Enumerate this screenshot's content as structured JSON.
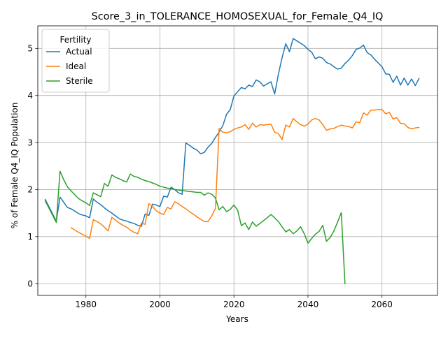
{
  "chart_data": {
    "type": "line",
    "title": "Score_3_in_TOLERANCE_HOMOSEXUAL_for_Female_Q4_IQ",
    "xlabel": "Years",
    "ylabel": "% of Female Q4_IQ Population",
    "xlim": [
      1967,
      2075
    ],
    "ylim": [
      -0.25,
      5.48
    ],
    "xticks": [
      1980,
      2000,
      2020,
      2040,
      2060
    ],
    "yticks": [
      0,
      1,
      2,
      3,
      4,
      5
    ],
    "grid": true,
    "legend": {
      "title": "Fertility",
      "position": "top-left"
    },
    "series": [
      {
        "name": "Actual",
        "color": "#1f77b4",
        "x": [
          1969,
          1972,
          1973,
          1974,
          1975,
          1976,
          1977,
          1978,
          1979,
          1980,
          1981,
          1982,
          1983,
          1984,
          1985,
          1986,
          1987,
          1988,
          1989,
          1990,
          1991,
          1992,
          1993,
          1994,
          1995,
          1996,
          1997,
          1998,
          1999,
          2000,
          2001,
          2002,
          2003,
          2004,
          2005,
          2006,
          2007,
          2008,
          2009,
          2010,
          2011,
          2012,
          2013,
          2014,
          2015,
          2016,
          2017,
          2018,
          2019,
          2020,
          2021,
          2022,
          2023,
          2024,
          2025,
          2026,
          2027,
          2028,
          2029,
          2030,
          2031,
          2032,
          2033,
          2034,
          2035,
          2036,
          2037,
          2038,
          2039,
          2040,
          2041,
          2042,
          2043,
          2044,
          2045,
          2046,
          2047,
          2048,
          2049,
          2050,
          2051,
          2052,
          2053,
          2054,
          2055,
          2056,
          2057,
          2058,
          2059,
          2060,
          2061,
          2062,
          2063,
          2064,
          2065,
          2066,
          2067,
          2068,
          2069,
          2070
        ],
        "y": [
          1.79,
          1.33,
          1.84,
          1.73,
          1.62,
          1.59,
          1.54,
          1.49,
          1.46,
          1.44,
          1.4,
          1.8,
          1.73,
          1.68,
          1.61,
          1.55,
          1.5,
          1.44,
          1.38,
          1.35,
          1.33,
          1.3,
          1.28,
          1.24,
          1.22,
          1.48,
          1.45,
          1.69,
          1.67,
          1.64,
          1.86,
          1.84,
          2.05,
          2.0,
          1.93,
          1.9,
          2.99,
          2.94,
          2.88,
          2.84,
          2.76,
          2.79,
          2.9,
          2.98,
          3.11,
          3.22,
          3.36,
          3.6,
          3.7,
          3.99,
          4.08,
          4.17,
          4.14,
          4.22,
          4.19,
          4.33,
          4.29,
          4.2,
          4.25,
          4.29,
          4.03,
          4.45,
          4.8,
          5.1,
          4.93,
          5.21,
          5.16,
          5.11,
          5.06,
          4.98,
          4.92,
          4.78,
          4.82,
          4.79,
          4.7,
          4.67,
          4.61,
          4.56,
          4.58,
          4.68,
          4.75,
          4.85,
          4.98,
          5.01,
          5.07,
          4.91,
          4.86,
          4.77,
          4.69,
          4.61,
          4.46,
          4.45,
          4.28,
          4.41,
          4.22,
          4.37,
          4.22,
          4.35,
          4.21,
          4.36
        ]
      },
      {
        "name": "Ideal",
        "color": "#ff7f0e",
        "x": [
          1976,
          1977,
          1978,
          1979,
          1980,
          1981,
          1982,
          1983,
          1984,
          1985,
          1986,
          1987,
          1988,
          1989,
          1990,
          1991,
          1992,
          1993,
          1994,
          1995,
          1996,
          1997,
          1998,
          1999,
          2000,
          2001,
          2002,
          2003,
          2004,
          2005,
          2006,
          2007,
          2008,
          2009,
          2010,
          2011,
          2012,
          2013,
          2014,
          2015,
          2016,
          2017,
          2018,
          2019,
          2020,
          2021,
          2022,
          2023,
          2024,
          2025,
          2026,
          2027,
          2028,
          2029,
          2030,
          2031,
          2032,
          2033,
          2034,
          2035,
          2036,
          2037,
          2038,
          2039,
          2040,
          2041,
          2042,
          2043,
          2044,
          2045,
          2046,
          2047,
          2048,
          2049,
          2050,
          2051,
          2052,
          2053,
          2054,
          2055,
          2056,
          2057,
          2058,
          2059,
          2060,
          2061,
          2062,
          2063,
          2064,
          2065,
          2066,
          2067,
          2068,
          2069,
          2070
        ],
        "y": [
          1.19,
          1.14,
          1.09,
          1.05,
          1.01,
          0.96,
          1.36,
          1.32,
          1.27,
          1.2,
          1.12,
          1.41,
          1.35,
          1.29,
          1.24,
          1.2,
          1.14,
          1.09,
          1.06,
          1.29,
          1.26,
          1.7,
          1.64,
          1.55,
          1.5,
          1.47,
          1.62,
          1.59,
          1.74,
          1.7,
          1.64,
          1.59,
          1.53,
          1.48,
          1.42,
          1.37,
          1.32,
          1.32,
          1.44,
          1.6,
          3.3,
          3.22,
          3.21,
          3.23,
          3.28,
          3.31,
          3.33,
          3.38,
          3.28,
          3.41,
          3.33,
          3.38,
          3.37,
          3.38,
          3.39,
          3.22,
          3.19,
          3.06,
          3.37,
          3.33,
          3.51,
          3.44,
          3.38,
          3.35,
          3.39,
          3.48,
          3.51,
          3.48,
          3.38,
          3.26,
          3.29,
          3.3,
          3.34,
          3.37,
          3.35,
          3.34,
          3.31,
          3.44,
          3.42,
          3.63,
          3.58,
          3.69,
          3.69,
          3.7,
          3.7,
          3.61,
          3.64,
          3.5,
          3.53,
          3.41,
          3.4,
          3.32,
          3.29,
          3.31,
          3.32
        ]
      },
      {
        "name": "Sterile",
        "color": "#2ca02c",
        "x": [
          1969,
          1972,
          1973,
          1974,
          1975,
          1976,
          1977,
          1978,
          1979,
          1980,
          1981,
          1982,
          1983,
          1984,
          1985,
          1986,
          1987,
          1988,
          1989,
          1990,
          1991,
          1992,
          1993,
          1994,
          1995,
          1996,
          1997,
          1998,
          1999,
          2000,
          2001,
          2002,
          2003,
          2004,
          2005,
          2006,
          2007,
          2008,
          2009,
          2010,
          2011,
          2012,
          2013,
          2014,
          2015,
          2016,
          2017,
          2018,
          2019,
          2020,
          2021,
          2022,
          2023,
          2024,
          2025,
          2026,
          2027,
          2028,
          2029,
          2030,
          2031,
          2032,
          2033,
          2034,
          2035,
          2036,
          2037,
          2038,
          2039,
          2040,
          2041,
          2042,
          2043,
          2044,
          2045,
          2046,
          2047,
          2048,
          2049,
          2050
        ],
        "y": [
          1.76,
          1.3,
          2.39,
          2.21,
          2.06,
          1.97,
          1.89,
          1.81,
          1.76,
          1.72,
          1.66,
          1.93,
          1.89,
          1.85,
          2.13,
          2.07,
          2.31,
          2.26,
          2.23,
          2.19,
          2.16,
          2.33,
          2.28,
          2.26,
          2.22,
          2.19,
          2.17,
          2.14,
          2.11,
          2.07,
          2.05,
          2.03,
          2.02,
          2.0,
          1.99,
          1.98,
          1.97,
          1.96,
          1.95,
          1.94,
          1.94,
          1.88,
          1.93,
          1.9,
          1.82,
          1.57,
          1.64,
          1.53,
          1.58,
          1.67,
          1.56,
          1.23,
          1.29,
          1.15,
          1.31,
          1.22,
          1.28,
          1.34,
          1.4,
          1.47,
          1.4,
          1.32,
          1.21,
          1.1,
          1.15,
          1.06,
          1.12,
          1.21,
          1.06,
          0.86,
          0.96,
          1.05,
          1.11,
          1.24,
          0.9,
          0.98,
          1.12,
          1.31,
          1.51,
          0.0
        ]
      }
    ]
  }
}
